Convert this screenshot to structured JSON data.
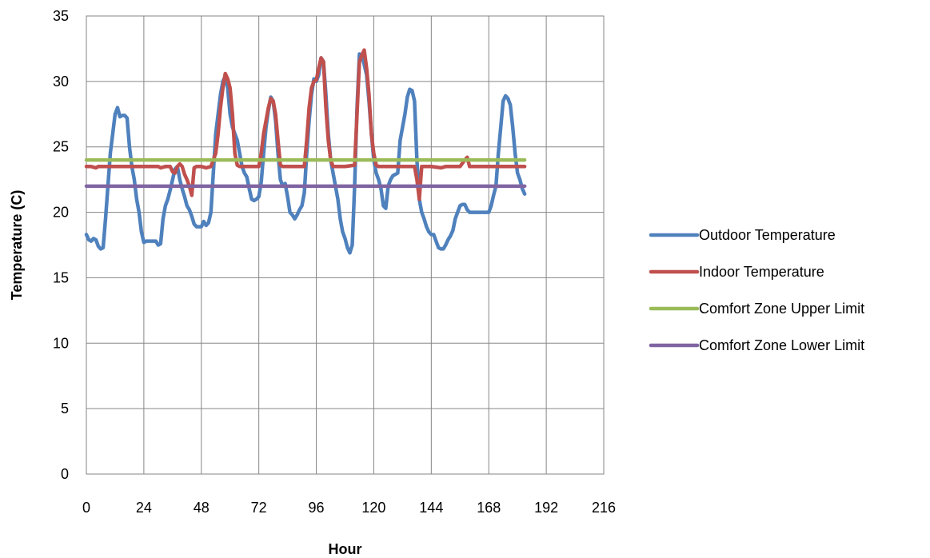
{
  "chart_data": {
    "type": "line",
    "xlabel": "Hour",
    "ylabel": "Temperature (C)",
    "xlim": [
      0,
      216
    ],
    "ylim": [
      0,
      35
    ],
    "x_ticks": [
      0,
      24,
      48,
      72,
      96,
      120,
      144,
      168,
      192,
      216
    ],
    "y_ticks": [
      0,
      5,
      10,
      15,
      20,
      25,
      30,
      35
    ],
    "grid": true,
    "legend_position": "right",
    "series": [
      {
        "name": "Outdoor Temperature",
        "color": "#4F81BD",
        "points": [
          [
            0,
            18.3
          ],
          [
            1,
            17.9
          ],
          [
            2,
            17.8
          ],
          [
            3,
            18.0
          ],
          [
            4,
            17.9
          ],
          [
            5,
            17.4
          ],
          [
            6,
            17.2
          ],
          [
            7,
            17.3
          ],
          [
            8,
            19.5
          ],
          [
            9,
            22.0
          ],
          [
            10,
            24.5
          ],
          [
            11,
            26.0
          ],
          [
            12,
            27.5
          ],
          [
            13,
            28.0
          ],
          [
            14,
            27.3
          ],
          [
            15,
            27.4
          ],
          [
            16,
            27.4
          ],
          [
            17,
            27.2
          ],
          [
            18,
            25.0
          ],
          [
            19,
            23.5
          ],
          [
            20,
            22.5
          ],
          [
            21,
            21.0
          ],
          [
            22,
            20.0
          ],
          [
            23,
            18.5
          ],
          [
            24,
            17.7
          ],
          [
            25,
            17.8
          ],
          [
            26,
            17.8
          ],
          [
            27,
            17.8
          ],
          [
            28,
            17.8
          ],
          [
            29,
            17.8
          ],
          [
            30,
            17.5
          ],
          [
            31,
            17.6
          ],
          [
            32,
            19.5
          ],
          [
            33,
            20.5
          ],
          [
            34,
            21.0
          ],
          [
            35,
            21.7
          ],
          [
            36,
            22.5
          ],
          [
            37,
            23.3
          ],
          [
            38,
            23.5
          ],
          [
            39,
            22.5
          ],
          [
            40,
            21.8
          ],
          [
            41,
            21.2
          ],
          [
            42,
            20.5
          ],
          [
            43,
            20.2
          ],
          [
            44,
            19.7
          ],
          [
            45,
            19.1
          ],
          [
            46,
            18.9
          ],
          [
            47,
            18.9
          ],
          [
            48,
            18.9
          ],
          [
            49,
            19.3
          ],
          [
            50,
            19.0
          ],
          [
            51,
            19.2
          ],
          [
            52,
            20.0
          ],
          [
            53,
            23.0
          ],
          [
            54,
            26.0
          ],
          [
            55,
            27.5
          ],
          [
            56,
            29.0
          ],
          [
            57,
            30.0
          ],
          [
            58,
            30.4
          ],
          [
            59,
            29.5
          ],
          [
            60,
            27.5
          ],
          [
            61,
            26.5
          ],
          [
            62,
            26.0
          ],
          [
            63,
            25.5
          ],
          [
            64,
            24.5
          ],
          [
            65,
            23.5
          ],
          [
            66,
            23.0
          ],
          [
            67,
            22.7
          ],
          [
            68,
            21.8
          ],
          [
            69,
            21.0
          ],
          [
            70,
            20.9
          ],
          [
            71,
            21.0
          ],
          [
            72,
            21.2
          ],
          [
            73,
            22.3
          ],
          [
            74,
            24.5
          ],
          [
            75,
            26.5
          ],
          [
            76,
            27.8
          ],
          [
            77,
            28.8
          ],
          [
            78,
            28.5
          ],
          [
            79,
            27.0
          ],
          [
            80,
            24.5
          ],
          [
            81,
            22.5
          ],
          [
            82,
            22.0
          ],
          [
            83,
            22.2
          ],
          [
            84,
            21.2
          ],
          [
            85,
            20.0
          ],
          [
            86,
            19.8
          ],
          [
            87,
            19.5
          ],
          [
            88,
            19.8
          ],
          [
            89,
            20.2
          ],
          [
            90,
            20.5
          ],
          [
            91,
            21.5
          ],
          [
            92,
            24.5
          ],
          [
            93,
            27.0
          ],
          [
            94,
            29.0
          ],
          [
            95,
            30.2
          ],
          [
            96,
            30.0
          ],
          [
            97,
            30.5
          ],
          [
            98,
            31.8
          ],
          [
            99,
            31.5
          ],
          [
            100,
            29.0
          ],
          [
            101,
            26.0
          ],
          [
            102,
            24.0
          ],
          [
            103,
            23.0
          ],
          [
            104,
            22.0
          ],
          [
            105,
            21.0
          ],
          [
            106,
            19.5
          ],
          [
            107,
            18.5
          ],
          [
            108,
            18.0
          ],
          [
            109,
            17.3
          ],
          [
            110,
            16.9
          ],
          [
            111,
            17.5
          ],
          [
            112,
            22.0
          ],
          [
            113,
            28.0
          ],
          [
            114,
            32.1
          ],
          [
            115,
            32.0
          ],
          [
            116,
            31.3
          ],
          [
            117,
            30.5
          ],
          [
            118,
            28.5
          ],
          [
            119,
            26.0
          ],
          [
            120,
            24.0
          ],
          [
            121,
            23.0
          ],
          [
            122,
            22.5
          ],
          [
            123,
            21.8
          ],
          [
            124,
            20.5
          ],
          [
            125,
            20.3
          ],
          [
            126,
            22.0
          ],
          [
            127,
            22.5
          ],
          [
            128,
            22.8
          ],
          [
            129,
            22.9
          ],
          [
            130,
            23.0
          ],
          [
            131,
            25.5
          ],
          [
            132,
            26.5
          ],
          [
            133,
            27.5
          ],
          [
            134,
            28.8
          ],
          [
            135,
            29.4
          ],
          [
            136,
            29.3
          ],
          [
            137,
            28.5
          ],
          [
            138,
            24.0
          ],
          [
            139,
            21.0
          ],
          [
            140,
            20.0
          ],
          [
            141,
            19.5
          ],
          [
            142,
            18.9
          ],
          [
            143,
            18.5
          ],
          [
            144,
            18.3
          ],
          [
            145,
            18.3
          ],
          [
            146,
            17.8
          ],
          [
            147,
            17.3
          ],
          [
            148,
            17.2
          ],
          [
            149,
            17.2
          ],
          [
            150,
            17.5
          ],
          [
            151,
            17.9
          ],
          [
            152,
            18.2
          ],
          [
            153,
            18.6
          ],
          [
            154,
            19.5
          ],
          [
            155,
            20.0
          ],
          [
            156,
            20.5
          ],
          [
            157,
            20.6
          ],
          [
            158,
            20.6
          ],
          [
            159,
            20.2
          ],
          [
            160,
            20.0
          ],
          [
            161,
            20.0
          ],
          [
            162,
            20.0
          ],
          [
            163,
            20.0
          ],
          [
            164,
            20.0
          ],
          [
            165,
            20.0
          ],
          [
            166,
            20.0
          ],
          [
            167,
            20.0
          ],
          [
            168,
            20.0
          ],
          [
            169,
            20.5
          ],
          [
            170,
            21.3
          ],
          [
            171,
            22.0
          ],
          [
            172,
            24.5
          ],
          [
            173,
            26.5
          ],
          [
            174,
            28.5
          ],
          [
            175,
            28.9
          ],
          [
            176,
            28.7
          ],
          [
            177,
            28.2
          ],
          [
            178,
            26.5
          ],
          [
            179,
            24.5
          ],
          [
            180,
            23.0
          ],
          [
            181,
            22.5
          ],
          [
            182,
            21.8
          ],
          [
            183,
            21.4
          ]
        ]
      },
      {
        "name": "Indoor Temperature",
        "color": "#C0504D",
        "points": [
          [
            0,
            23.5
          ],
          [
            1,
            23.5
          ],
          [
            2,
            23.5
          ],
          [
            4,
            23.4
          ],
          [
            5,
            23.5
          ],
          [
            10,
            23.5
          ],
          [
            20,
            23.5
          ],
          [
            30,
            23.5
          ],
          [
            31,
            23.4
          ],
          [
            33,
            23.5
          ],
          [
            35,
            23.5
          ],
          [
            36,
            23.1
          ],
          [
            37,
            23.0
          ],
          [
            38,
            23.5
          ],
          [
            39,
            23.7
          ],
          [
            40,
            23.5
          ],
          [
            41,
            22.9
          ],
          [
            42,
            22.5
          ],
          [
            43,
            22.0
          ],
          [
            44,
            21.3
          ],
          [
            45,
            23.4
          ],
          [
            46,
            23.5
          ],
          [
            48,
            23.5
          ],
          [
            50,
            23.4
          ],
          [
            52,
            23.5
          ],
          [
            54,
            24.5
          ],
          [
            55,
            26.0
          ],
          [
            56,
            28.0
          ],
          [
            57,
            29.5
          ],
          [
            58,
            30.6
          ],
          [
            59,
            30.2
          ],
          [
            60,
            29.5
          ],
          [
            61,
            27.5
          ],
          [
            62,
            24.5
          ],
          [
            63,
            23.6
          ],
          [
            64,
            23.5
          ],
          [
            68,
            23.5
          ],
          [
            72,
            23.5
          ],
          [
            73,
            24.5
          ],
          [
            74,
            26.0
          ],
          [
            75,
            27.0
          ],
          [
            76,
            28.0
          ],
          [
            77,
            28.7
          ],
          [
            78,
            28.5
          ],
          [
            79,
            27.5
          ],
          [
            80,
            25.5
          ],
          [
            81,
            23.6
          ],
          [
            82,
            23.5
          ],
          [
            84,
            23.5
          ],
          [
            88,
            23.5
          ],
          [
            91,
            23.5
          ],
          [
            92,
            25.5
          ],
          [
            93,
            28.0
          ],
          [
            94,
            29.5
          ],
          [
            95,
            30.0
          ],
          [
            96,
            30.1
          ],
          [
            97,
            31.0
          ],
          [
            98,
            31.8
          ],
          [
            99,
            31.5
          ],
          [
            100,
            28.0
          ],
          [
            101,
            25.5
          ],
          [
            102,
            24.0
          ],
          [
            103,
            23.5
          ],
          [
            108,
            23.5
          ],
          [
            112,
            23.6
          ],
          [
            113,
            27.5
          ],
          [
            114,
            31.5
          ],
          [
            115,
            32.0
          ],
          [
            116,
            32.4
          ],
          [
            117,
            31.0
          ],
          [
            118,
            29.0
          ],
          [
            119,
            26.0
          ],
          [
            120,
            24.5
          ],
          [
            121,
            23.6
          ],
          [
            122,
            23.5
          ],
          [
            126,
            23.5
          ],
          [
            132,
            23.5
          ],
          [
            137,
            23.5
          ],
          [
            138,
            22.5
          ],
          [
            139,
            21.0
          ],
          [
            140,
            23.5
          ],
          [
            144,
            23.5
          ],
          [
            148,
            23.4
          ],
          [
            150,
            23.5
          ],
          [
            156,
            23.5
          ],
          [
            158,
            24.0
          ],
          [
            159,
            24.2
          ],
          [
            160,
            23.5
          ],
          [
            165,
            23.5
          ],
          [
            170,
            23.5
          ],
          [
            183,
            23.5
          ]
        ]
      },
      {
        "name": "Comfort Zone Upper Limit",
        "color": "#9BBB59",
        "points": [
          [
            0,
            24.0
          ],
          [
            183,
            24.0
          ]
        ]
      },
      {
        "name": "Comfort Zone Lower Limit",
        "color": "#8064A2",
        "points": [
          [
            0,
            22.0
          ],
          [
            183,
            22.0
          ]
        ]
      }
    ]
  }
}
